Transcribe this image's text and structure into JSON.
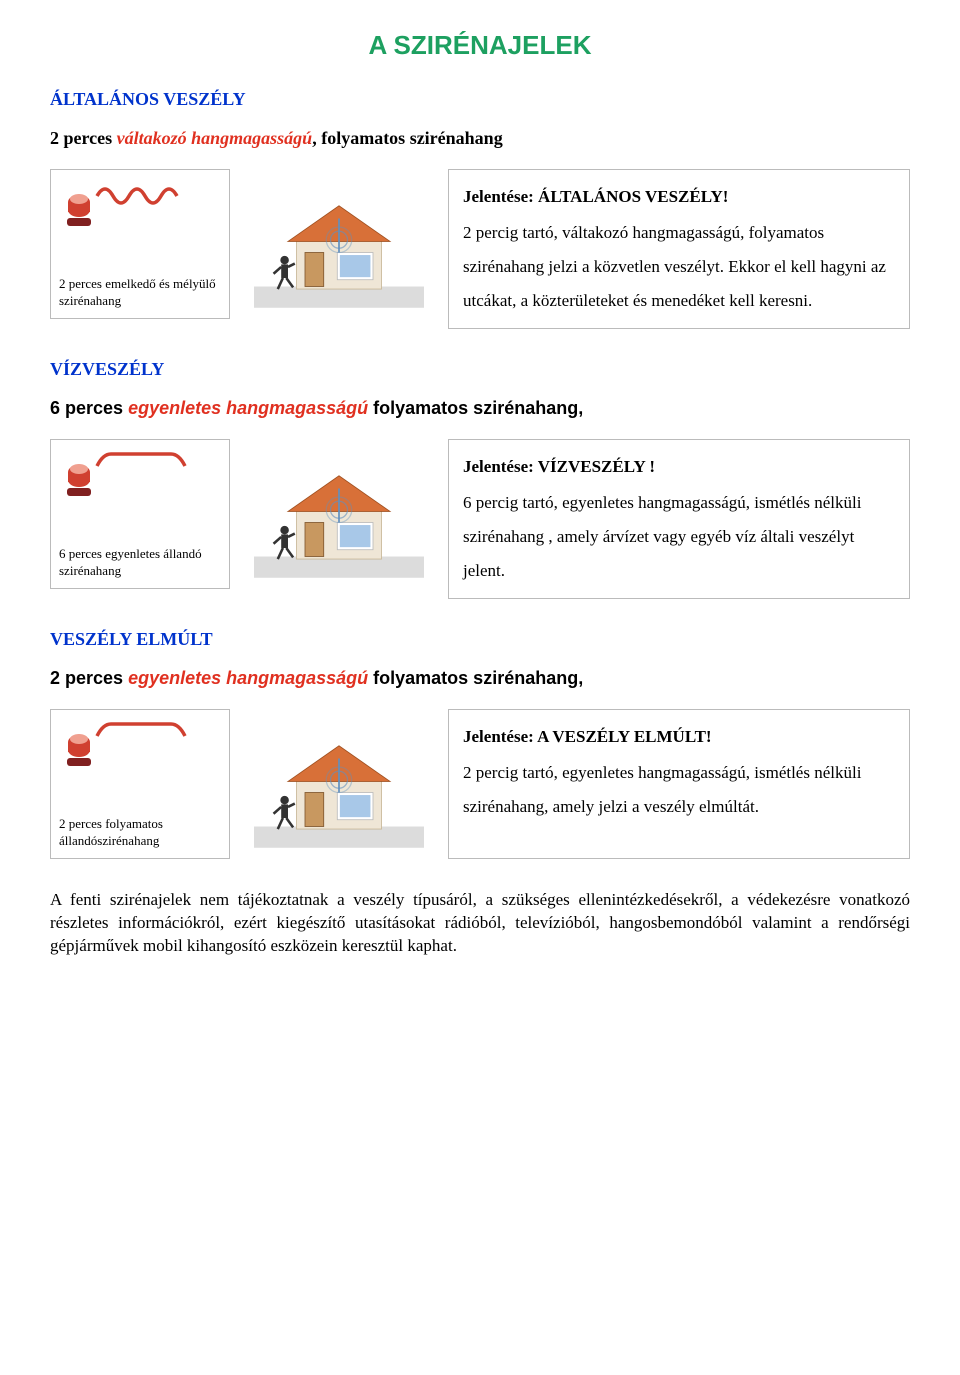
{
  "title": "A SZIRÉNAJELEK",
  "colors": {
    "title": "#1da060",
    "heading": "#0033cc",
    "emphasis": "#e03020",
    "box_border": "#bbbbbb",
    "siren_red": "#d04030",
    "siren_dark": "#802020",
    "roof": "#d87038",
    "wall": "#efe6d6",
    "window": "#a8c8e8",
    "antenna": "#6090c0",
    "ground": "#dcdcdc",
    "person": "#333333"
  },
  "sections": [
    {
      "heading": "ÁLTALÁNOS VESZÉLY",
      "line_prefix": "2 perces ",
      "line_emph": "váltakozó hangmagasságú",
      "line_suffix": ", folyamatos szirénahang",
      "line_style": "serif",
      "siren_wave": "wavy",
      "illus_caption": "2 perces emelkedő és mélyülő szirénahang",
      "meaning": "Jelentése: ÁLTALÁNOS VESZÉLY!",
      "body": "2 percig tartó, váltakozó hangmagasságú, folyamatos szirénahang jelzi a közvetlen veszélyt. Ekkor el kell hagyni az utcákat, a közterületeket és menedéket kell keresni."
    },
    {
      "heading": "VÍZVESZÉLY",
      "line_prefix": "6 perces  ",
      "line_emph": "egyenletes hangmagasságú",
      "line_suffix": "  folyamatos szirénahang,",
      "line_style": "arial",
      "siren_wave": "flat",
      "illus_caption": "6 perces egyenletes állandó szirénahang",
      "meaning": "Jelentése: VÍZVESZÉLY !",
      "body": "6 percig tartó, egyenletes hangmagasságú, ismétlés nélküli szirénahang , amely árvízet vagy egyéb víz általi veszélyt jelent."
    },
    {
      "heading": "VESZÉLY ELMÚLT",
      "line_prefix": "2 perces  ",
      "line_emph": "egyenletes hangmagasságú",
      "line_suffix": "  folyamatos szirénahang,",
      "line_style": "arial",
      "siren_wave": "flat",
      "illus_caption": "2 perces folyamatos állandószirénahang",
      "meaning": "Jelentése: A VESZÉLY  ELMÚLT!",
      "body": "2 percig tartó, egyenletes hangmagasságú, ismétlés nélküli szirénahang, amely jelzi a veszély elmúltát."
    }
  ],
  "footer": "A fenti szirénajelek nem tájékoztatnak a veszély típusáról, a szükséges ellenintézkedésekről, a védekezésre vonatkozó részletes információkról, ezért kiegészítő utasításokat rádióból, televízióból, hangosbemondóból valamint a rendőrségi gépjárművek mobil kihangosító eszközein keresztül kaphat."
}
